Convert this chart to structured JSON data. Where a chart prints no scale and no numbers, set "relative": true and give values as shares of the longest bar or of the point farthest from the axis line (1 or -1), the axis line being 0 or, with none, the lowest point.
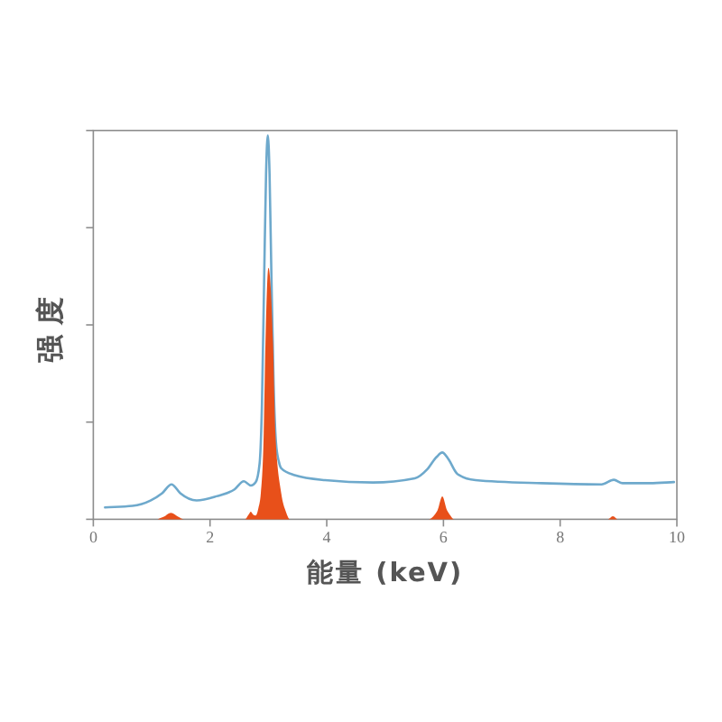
{
  "chart_data": {
    "type": "line",
    "xlabel": "能量 (keV)",
    "ylabel": "强度",
    "relative": true,
    "xlim": [
      0,
      10
    ],
    "xticks": [
      0,
      2,
      4,
      6,
      8,
      10
    ],
    "series": [
      {
        "color": "#6ea9cc",
        "x": [
          0.2,
          0.67,
          0.98,
          1.18,
          1.34,
          1.49,
          1.77,
          2.11,
          2.42,
          2.58,
          2.7,
          2.78,
          2.85,
          2.89,
          2.93,
          2.96,
          2.99,
          3.02,
          3.05,
          3.09,
          3.13,
          3.18,
          3.22,
          3.45,
          3.97,
          4.79,
          5.51,
          5.72,
          5.88,
          5.98,
          6.08,
          6.24,
          6.55,
          7.68,
          8.71,
          8.92,
          9.07,
          9.54,
          9.95
        ],
        "values": [
          0.031,
          0.035,
          0.049,
          0.068,
          0.091,
          0.068,
          0.049,
          0.06,
          0.078,
          0.099,
          0.088,
          0.096,
          0.146,
          0.3,
          0.65,
          0.9,
          1.0,
          0.9,
          0.65,
          0.35,
          0.2,
          0.15,
          0.133,
          0.115,
          0.102,
          0.096,
          0.107,
          0.13,
          0.162,
          0.174,
          0.158,
          0.118,
          0.102,
          0.094,
          0.091,
          0.103,
          0.094,
          0.094,
          0.097
        ]
      },
      {
        "type": "area",
        "color": "#e8501a",
        "x": [
          1.1,
          1.2,
          1.33,
          1.46,
          1.55,
          2.6,
          2.66,
          2.7,
          2.74,
          2.78,
          2.83,
          2.87,
          2.92,
          2.95,
          3.0,
          3.08,
          3.12,
          3.22,
          3.3,
          3.37,
          5.75,
          5.85,
          5.9,
          5.98,
          6.06,
          6.12,
          6.18,
          8.82,
          8.9,
          8.98
        ],
        "values": [
          0,
          0.006,
          0.017,
          0.006,
          0,
          0,
          0.012,
          0.02,
          0.012,
          0.01,
          0.03,
          0.068,
          0.224,
          0.46,
          0.655,
          0.46,
          0.224,
          0.068,
          0.02,
          0,
          0,
          0.012,
          0.024,
          0.06,
          0.024,
          0.01,
          0,
          0,
          0.008,
          0
        ]
      }
    ]
  }
}
